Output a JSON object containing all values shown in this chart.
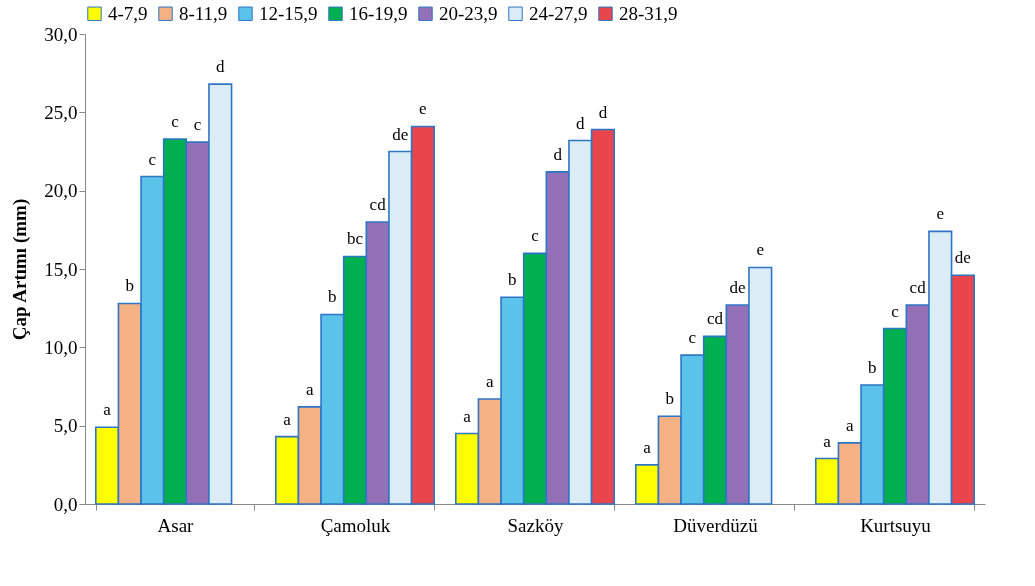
{
  "chart_data": {
    "type": "bar",
    "ylabel": "Çap Artımı (mm)",
    "categories": [
      "Asar",
      "Çamoluk",
      "Sazköy",
      "Düverdüzü",
      "Kurtsuyu"
    ],
    "ylim": [
      0,
      30
    ],
    "yticks": [
      {
        "value": 0,
        "label": "0,0"
      },
      {
        "value": 5,
        "label": "5,0"
      },
      {
        "value": 10,
        "label": "10,0"
      },
      {
        "value": 15,
        "label": "15,0"
      },
      {
        "value": 20,
        "label": "20,0"
      },
      {
        "value": 25,
        "label": "25,0"
      },
      {
        "value": 30,
        "label": "30,0"
      }
    ],
    "grid": false,
    "legend": "top",
    "series": [
      {
        "name": "4-7,9",
        "color": "#ffff00",
        "values": [
          4.9,
          4.3,
          4.5,
          2.5,
          2.9
        ],
        "value_labels": [
          "a",
          "a",
          "a",
          "a",
          "a"
        ]
      },
      {
        "name": "8-11,9",
        "color": "#f4b183",
        "values": [
          12.8,
          6.2,
          6.7,
          5.6,
          3.9
        ],
        "value_labels": [
          "b",
          "a",
          "a",
          "b",
          "a"
        ]
      },
      {
        "name": "12-15,9",
        "color": "#5bc3ea",
        "values": [
          20.9,
          12.1,
          13.2,
          9.5,
          7.6
        ],
        "value_labels": [
          "c",
          "b",
          "b",
          "c",
          "b"
        ]
      },
      {
        "name": "16-19,9",
        "color": "#00b050",
        "values": [
          23.3,
          15.8,
          16.0,
          10.7,
          11.2
        ],
        "value_labels": [
          "c",
          "bc",
          "c",
          "cd",
          "c"
        ]
      },
      {
        "name": "20-23,9",
        "color": "#9370b8",
        "values": [
          23.1,
          18.0,
          21.2,
          12.7,
          12.7
        ],
        "value_labels": [
          "c",
          "cd",
          "d",
          "de",
          "cd"
        ]
      },
      {
        "name": "24-27,9",
        "color": "#dcecf6",
        "values": [
          26.8,
          22.5,
          23.2,
          15.1,
          17.4
        ],
        "value_labels": [
          "d",
          "de",
          "d",
          "e",
          "e"
        ]
      },
      {
        "name": "28-31,9",
        "color": "#e8464c",
        "values": [
          null,
          24.1,
          23.9,
          null,
          14.6
        ],
        "value_labels": [
          null,
          "e",
          "d",
          null,
          "de"
        ]
      }
    ]
  }
}
